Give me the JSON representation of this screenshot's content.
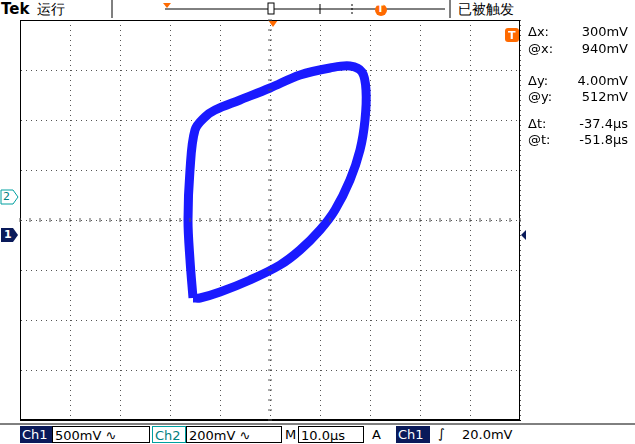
{
  "chart_data": {
    "type": "scatter",
    "marker": "none",
    "line_style": "solid",
    "color": "#1a1aff",
    "grid": true,
    "tick_labels": false,
    "x": [
      -770,
      -800,
      -820,
      -800,
      -750,
      -650,
      -550,
      -300,
      0,
      300,
      600,
      800,
      920,
      960,
      950,
      900,
      800,
      650,
      500,
      300,
      100,
      -200,
      -500,
      -700,
      -770
    ],
    "values": [
      -312,
      -160,
      0,
      200,
      360,
      412,
      440,
      480,
      528,
      580,
      608,
      616,
      592,
      520,
      400,
      280,
      160,
      40,
      -40,
      -120,
      -180,
      -240,
      -288,
      -312,
      -312
    ],
    "xlim": [
      -2500,
      2500
    ],
    "xticks": [
      -2500,
      -2000,
      -1500,
      -1000,
      -500,
      0,
      500,
      1000,
      1500,
      2000,
      2500
    ],
    "ylim": [
      -800,
      800
    ],
    "yticks": [
      -800,
      -600,
      -400,
      -200,
      0,
      200,
      400,
      600,
      800
    ]
  },
  "screen": {
    "brand": "Tek",
    "state": "运行",
    "trigger_status": "已被触发",
    "cursor": [
      [
        "Δx:",
        "300mV"
      ],
      [
        "@x:",
        "940mV"
      ],
      [
        "Δy:",
        "4.00mV"
      ],
      [
        "@y:",
        "512mV"
      ],
      [
        "Δt:",
        "-37.4µs"
      ],
      [
        "@t:",
        "-51.8µs"
      ]
    ],
    "markers": {
      "ch1": "1",
      "ch2": "2",
      "trigger": "T"
    },
    "status_bar": {
      "ch1": "Ch1",
      "ch1_scale": "500mV",
      "ch2": "Ch2",
      "ch2_scale": "200mV",
      "coupling_symbol": "∿",
      "timebase_label": "M",
      "timebase": "10.0µs",
      "trigger_label": "A",
      "trigger_source": "Ch1",
      "slope_symbol": "∫",
      "trigger_level": "20.0mV"
    }
  }
}
